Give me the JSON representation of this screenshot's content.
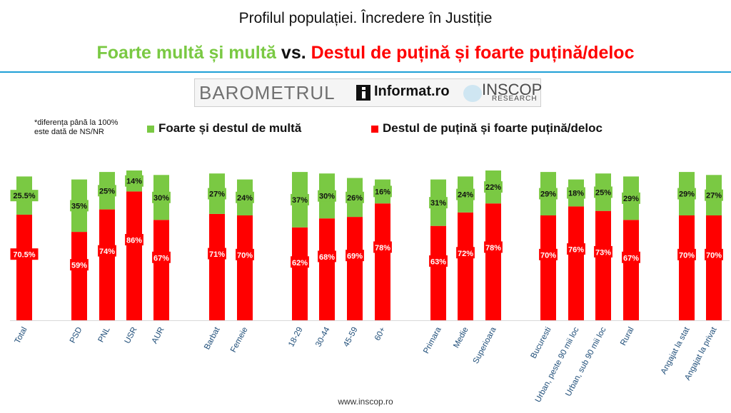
{
  "header": {
    "title": "Profilul populației. Încredere în Justiție",
    "subtitle_green": "Foarte multă și multă",
    "subtitle_vs": "vs.",
    "subtitle_red": "Destul de puțină și foarte puțină/deloc"
  },
  "logos": {
    "barometrul": "BAROMETRUL",
    "informat": "Informat.ro",
    "inscop": "INSCOP",
    "inscop_sub": "RESEARCH"
  },
  "note": {
    "line1": "*diferența până la 100%",
    "line2": "este dată de NS/NR"
  },
  "legend": {
    "green_label": "Foarte și destul de multă",
    "red_label": "Destul de puțină și foarte puțină/deloc"
  },
  "footer": {
    "url": "www.inscop.ro"
  },
  "chart_data": {
    "type": "bar",
    "stacked": true,
    "categories": [
      "Total",
      "PSD",
      "PNL",
      "USR",
      "AUR",
      "Barbat",
      "Femeie",
      "18-29",
      "30-44",
      "45-59",
      "60+",
      "Primara",
      "Medie",
      "Superioara",
      "Bucuresti",
      "Urban, peste 90 mii loc",
      "Urban, sub 90 mii loc",
      "Rural",
      "Angajat la stat",
      "Angajat la privat"
    ],
    "groups": [
      1,
      2,
      2,
      2,
      2,
      3,
      3,
      4,
      4,
      4,
      4,
      5,
      5,
      5,
      6,
      6,
      6,
      6,
      7,
      7
    ],
    "series": [
      {
        "name": "Destul de puțină și foarte puțină/deloc",
        "color": "#ff0000",
        "values": [
          70.5,
          59,
          74,
          86,
          67,
          71,
          70,
          62,
          68,
          69,
          78,
          63,
          72,
          78,
          70,
          76,
          73,
          67,
          70,
          70
        ],
        "labels": [
          "70.5%",
          "59%",
          "74%",
          "86%",
          "67%",
          "71%",
          "70%",
          "62%",
          "68%",
          "69%",
          "78%",
          "63%",
          "72%",
          "78%",
          "70%",
          "76%",
          "73%",
          "67%",
          "70%",
          "70%"
        ]
      },
      {
        "name": "Foarte și destul de multă",
        "color": "#7ac943",
        "values": [
          25.5,
          35,
          25,
          14,
          30,
          27,
          24,
          37,
          30,
          26,
          16,
          31,
          24,
          22,
          29,
          18,
          25,
          29,
          29,
          27
        ],
        "labels": [
          "25.5%",
          "35%",
          "25%",
          "14%",
          "30%",
          "27%",
          "24%",
          "37%",
          "30%",
          "26%",
          "16%",
          "31%",
          "24%",
          "22%",
          "29%",
          "18%",
          "25%",
          "29%",
          "29%",
          "27%"
        ]
      }
    ],
    "ylim": [
      0,
      100
    ],
    "grid": false,
    "legend_position": "top",
    "category_label_color": "#1f4e79"
  }
}
